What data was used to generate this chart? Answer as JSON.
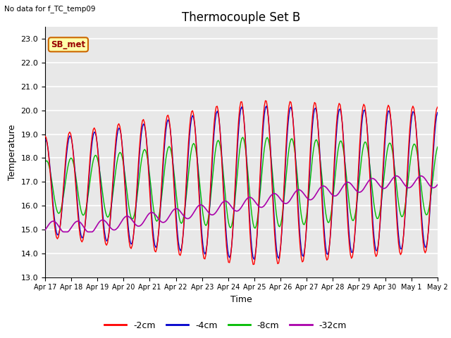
{
  "title": "Thermocouple Set B",
  "no_data_text": "No data for f_TC_temp09",
  "xlabel": "Time",
  "ylabel": "Temperature",
  "ylim": [
    13.0,
    23.5
  ],
  "yticks": [
    13.0,
    14.0,
    15.0,
    16.0,
    17.0,
    18.0,
    19.0,
    20.0,
    21.0,
    22.0,
    23.0
  ],
  "xtick_labels": [
    "Apr 17",
    "Apr 18",
    "Apr 19",
    "Apr 20",
    "Apr 21",
    "Apr 22",
    "Apr 23",
    "Apr 24",
    "Apr 25",
    "Apr 26",
    "Apr 27",
    "Apr 28",
    "Apr 29",
    "Apr 30",
    "May 1",
    "May 2"
  ],
  "colors": {
    "2cm": "#ff0000",
    "4cm": "#0000cc",
    "8cm": "#00bb00",
    "32cm": "#aa00aa"
  },
  "legend_labels": [
    "-2cm",
    "-4cm",
    "-8cm",
    "-32cm"
  ],
  "legend_colors": [
    "#ff0000",
    "#0000cc",
    "#00bb00",
    "#aa00aa"
  ],
  "annotation_box": "SB_met",
  "annotation_box_color": "#ffffaa",
  "annotation_box_border": "#cc6600",
  "annotation_box_text": "#990000",
  "background_color": "#e8e8e8",
  "grid_color": "#ffffff",
  "title_fontsize": 12,
  "axis_fontsize": 9,
  "tick_fontsize": 8
}
